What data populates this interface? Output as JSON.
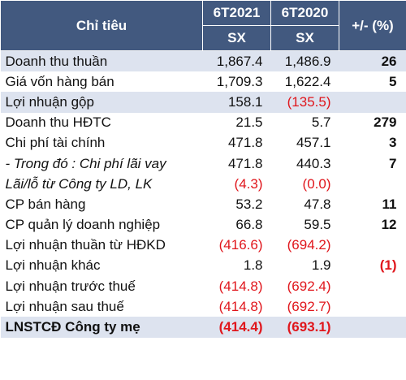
{
  "header": {
    "metric_label": "Chỉ tiêu",
    "period_1": "6T2021",
    "period_2": "6T2020",
    "change_label": "+/- (%)",
    "unit_1": "SX",
    "unit_2": "SX"
  },
  "rows": [
    {
      "label": "Doanh thu thuần",
      "v1": "1,867.4",
      "v2": "1,486.9",
      "chg": "26"
    },
    {
      "label": "Giá vốn hàng bán",
      "v1": "1,709.3",
      "v2": "1,622.4",
      "chg": "5"
    },
    {
      "label": "Lợi nhuận gộp",
      "v1": "158.1",
      "v2": "(135.5)",
      "chg": ""
    },
    {
      "label": "Doanh thu HĐTC",
      "v1": "21.5",
      "v2": "5.7",
      "chg": "279"
    },
    {
      "label": "Chi phí tài chính",
      "v1": "471.8",
      "v2": "457.1",
      "chg": "3"
    },
    {
      "label": "- Trong đó : Chi phí lãi vay",
      "v1": "471.8",
      "v2": "440.3",
      "chg": "7"
    },
    {
      "label": "Lãi/lỗ từ Công ty LD, LK",
      "v1": "(4.3)",
      "v2": "(0.0)",
      "chg": ""
    },
    {
      "label": "CP bán hàng",
      "v1": "53.2",
      "v2": "47.8",
      "chg": "11"
    },
    {
      "label": "CP quản lý doanh nghiệp",
      "v1": "66.8",
      "v2": "59.5",
      "chg": "12"
    },
    {
      "label": "Lợi nhuận thuần từ HĐKD",
      "v1": "(416.6)",
      "v2": "(694.2)",
      "chg": ""
    },
    {
      "label": "Lợi nhuận khác",
      "v1": "1.8",
      "v2": "1.9",
      "chg": "(1)"
    },
    {
      "label": "Lợi nhuận trước thuế",
      "v1": "(414.8)",
      "v2": "(692.4)",
      "chg": ""
    },
    {
      "label": "Lợi nhuận sau thuế",
      "v1": "(414.8)",
      "v2": "(692.7)",
      "chg": ""
    },
    {
      "label": "LNSTCĐ Công ty mẹ",
      "v1": "(414.4)",
      "v2": "(693.1)",
      "chg": ""
    }
  ],
  "colors": {
    "header_bg": "#42597f",
    "shade_bg": "#dde3ef",
    "negative": "#e0161c"
  }
}
